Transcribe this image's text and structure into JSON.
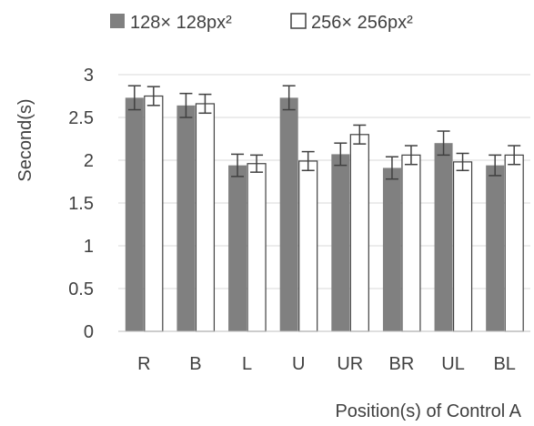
{
  "colors": {
    "series_a": "#808080",
    "series_b": "#ffffff",
    "outline": "#404040",
    "gridline": "#d9d9d9",
    "axis": "#bfbfbf",
    "text": "#404040"
  },
  "chart_data": {
    "type": "bar",
    "title": "",
    "xlabel": "Position(s) of Control A",
    "ylabel": "Second(s)",
    "ylim": [
      0,
      3
    ],
    "yticks": [
      "0",
      "0.5",
      "1",
      "1.5",
      "2",
      "2.5",
      "3"
    ],
    "grid": true,
    "legend_position": "top",
    "categories": [
      "R",
      "B",
      "L",
      "U",
      "UR",
      "BR",
      "UL",
      "BL"
    ],
    "series": [
      {
        "name": "128× 128px²",
        "values": [
          2.73,
          2.64,
          1.94,
          2.73,
          2.07,
          1.91,
          2.2,
          1.94
        ],
        "errors": [
          0.14,
          0.14,
          0.13,
          0.14,
          0.13,
          0.13,
          0.14,
          0.12
        ]
      },
      {
        "name": "256× 256px²",
        "values": [
          2.75,
          2.66,
          1.96,
          1.99,
          2.3,
          2.06,
          1.98,
          2.06
        ],
        "errors": [
          0.11,
          0.11,
          0.1,
          0.11,
          0.11,
          0.11,
          0.1,
          0.11
        ]
      }
    ]
  }
}
